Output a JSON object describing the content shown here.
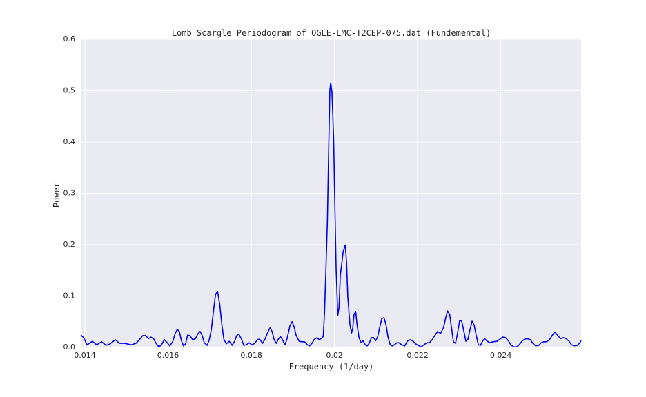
{
  "chart_data": {
    "type": "line",
    "title": "Lomb Scargle Periodogram of OGLE-LMC-T2CEP-075.dat (Fundemental)",
    "x_label": "Frequency (1/day)",
    "y_label": "Power",
    "xlim": [
      0.0139,
      0.02593
    ],
    "ylim": [
      0,
      0.6
    ],
    "xticks": [
      0.014,
      0.016,
      0.018,
      0.02,
      0.022,
      0.024
    ],
    "yticks": [
      {
        "value": 0,
        "label": "0.0"
      },
      0.1,
      0.2,
      0.3,
      0.4,
      0.5,
      0.6
    ],
    "grid": true,
    "x": [
      0.0139,
      0.01397,
      0.01405,
      0.01418,
      0.01428,
      0.0144,
      0.01451,
      0.01461,
      0.01473,
      0.01483,
      0.01496,
      0.01511,
      0.01523,
      0.01531,
      0.01539,
      0.01546,
      0.01553,
      0.01559,
      0.01566,
      0.01571,
      0.01578,
      0.01584,
      0.01591,
      0.01598,
      0.01604,
      0.01611,
      0.01617,
      0.01622,
      0.01627,
      0.01632,
      0.01637,
      0.01642,
      0.01647,
      0.01652,
      0.01659,
      0.01666,
      0.01671,
      0.01677,
      0.01682,
      0.01687,
      0.01694,
      0.01699,
      0.01704,
      0.01709,
      0.01714,
      0.01719,
      0.01724,
      0.01729,
      0.01734,
      0.0174,
      0.01747,
      0.01754,
      0.0176,
      0.01765,
      0.0177,
      0.01777,
      0.01782,
      0.01788,
      0.01795,
      0.01802,
      0.01808,
      0.01815,
      0.0182,
      0.01827,
      0.01833,
      0.0184,
      0.01845,
      0.0185,
      0.01855,
      0.0186,
      0.01865,
      0.0187,
      0.01875,
      0.01881,
      0.01886,
      0.01893,
      0.01898,
      0.01903,
      0.01908,
      0.01915,
      0.01921,
      0.01928,
      0.01935,
      0.0194,
      0.01946,
      0.01951,
      0.01958,
      0.01963,
      0.01968,
      0.01973,
      0.01976,
      0.01979,
      0.01983,
      0.01986,
      0.01989,
      0.01991,
      0.01994,
      0.01998,
      0.02001,
      0.02004,
      0.02008,
      0.02011,
      0.02014,
      0.02018,
      0.02021,
      0.02026,
      0.02029,
      0.02032,
      0.02037,
      0.02041,
      0.02044,
      0.02047,
      0.02051,
      0.02054,
      0.02059,
      0.02064,
      0.02069,
      0.02074,
      0.02079,
      0.02084,
      0.02089,
      0.02094,
      0.02099,
      0.02104,
      0.02109,
      0.02114,
      0.02119,
      0.02124,
      0.02129,
      0.02134,
      0.02139,
      0.02144,
      0.0215,
      0.02155,
      0.02162,
      0.02169,
      0.02175,
      0.02182,
      0.02189,
      0.02195,
      0.02202,
      0.02208,
      0.02215,
      0.02222,
      0.02228,
      0.02235,
      0.02242,
      0.02248,
      0.02255,
      0.02262,
      0.02267,
      0.02272,
      0.02277,
      0.02282,
      0.02286,
      0.02291,
      0.02296,
      0.02301,
      0.02306,
      0.02311,
      0.02316,
      0.02321,
      0.02326,
      0.02331,
      0.02336,
      0.02341,
      0.02346,
      0.02351,
      0.02356,
      0.02361,
      0.02366,
      0.02373,
      0.02381,
      0.02391,
      0.02398,
      0.02404,
      0.02411,
      0.02418,
      0.02424,
      0.02431,
      0.02438,
      0.02444,
      0.02451,
      0.02457,
      0.02464,
      0.02471,
      0.02477,
      0.02484,
      0.02491,
      0.02497,
      0.02504,
      0.0251,
      0.02517,
      0.02524,
      0.0253,
      0.02537,
      0.02544,
      0.0255,
      0.02557,
      0.02564,
      0.0257,
      0.02577,
      0.02584,
      0.0259,
      0.02593
    ],
    "series": [
      {
        "color": "#0000ee",
        "values": [
          0.024,
          0.019,
          0.005,
          0.012,
          0.005,
          0.011,
          0.004,
          0.007,
          0.015,
          0.008,
          0.008,
          0.005,
          0.008,
          0.015,
          0.023,
          0.023,
          0.017,
          0.02,
          0.016,
          0.008,
          0.001,
          0.005,
          0.015,
          0.009,
          0.003,
          0.011,
          0.027,
          0.035,
          0.031,
          0.013,
          0.003,
          0.007,
          0.024,
          0.023,
          0.015,
          0.017,
          0.026,
          0.031,
          0.023,
          0.009,
          0.004,
          0.015,
          0.035,
          0.07,
          0.103,
          0.109,
          0.085,
          0.046,
          0.016,
          0.007,
          0.012,
          0.004,
          0.012,
          0.023,
          0.026,
          0.015,
          0.004,
          0.005,
          0.009,
          0.005,
          0.008,
          0.015,
          0.016,
          0.008,
          0.016,
          0.03,
          0.038,
          0.031,
          0.015,
          0.008,
          0.016,
          0.021,
          0.015,
          0.005,
          0.017,
          0.042,
          0.05,
          0.04,
          0.023,
          0.012,
          0.011,
          0.011,
          0.005,
          0.003,
          0.008,
          0.015,
          0.019,
          0.015,
          0.017,
          0.021,
          0.066,
          0.14,
          0.247,
          0.381,
          0.502,
          0.515,
          0.497,
          0.408,
          0.274,
          0.153,
          0.062,
          0.078,
          0.14,
          0.166,
          0.187,
          0.199,
          0.166,
          0.099,
          0.046,
          0.028,
          0.038,
          0.064,
          0.07,
          0.046,
          0.019,
          0.009,
          0.013,
          0.005,
          0.003,
          0.009,
          0.019,
          0.019,
          0.013,
          0.021,
          0.04,
          0.056,
          0.058,
          0.044,
          0.019,
          0.005,
          0.003,
          0.005,
          0.009,
          0.009,
          0.005,
          0.003,
          0.012,
          0.015,
          0.012,
          0.007,
          0.004,
          0.001,
          0.005,
          0.009,
          0.009,
          0.015,
          0.024,
          0.031,
          0.027,
          0.038,
          0.056,
          0.071,
          0.064,
          0.035,
          0.011,
          0.008,
          0.028,
          0.052,
          0.051,
          0.032,
          0.012,
          0.016,
          0.035,
          0.051,
          0.043,
          0.023,
          0.005,
          0.004,
          0.012,
          0.017,
          0.013,
          0.009,
          0.011,
          0.012,
          0.016,
          0.02,
          0.019,
          0.013,
          0.005,
          0.001,
          0.001,
          0.005,
          0.012,
          0.016,
          0.017,
          0.015,
          0.008,
          0.003,
          0.004,
          0.009,
          0.011,
          0.011,
          0.015,
          0.024,
          0.03,
          0.023,
          0.017,
          0.019,
          0.017,
          0.012,
          0.005,
          0.003,
          0.004,
          0.009,
          0.013
        ]
      }
    ]
  }
}
